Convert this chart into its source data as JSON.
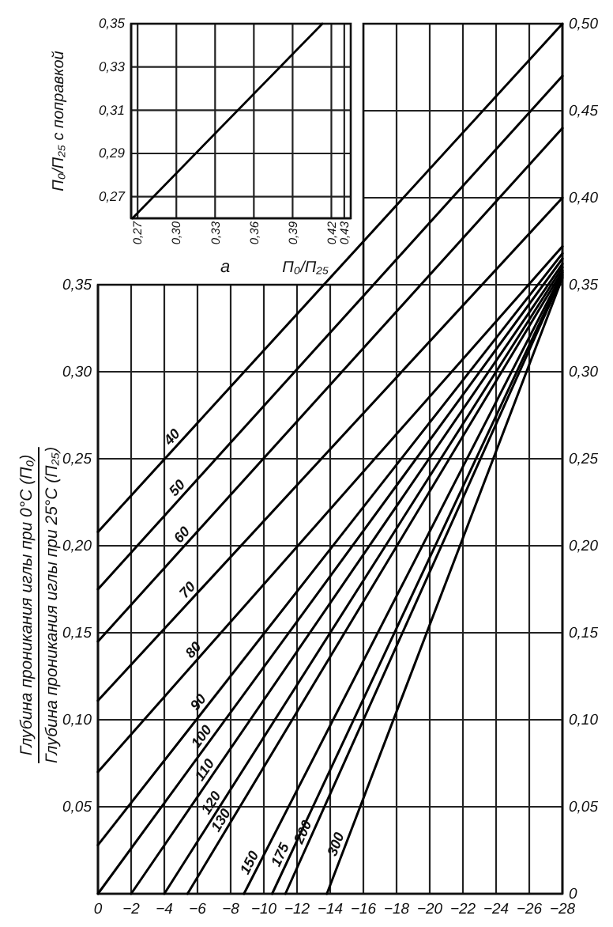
{
  "chart_data": [
    {
      "type": "line",
      "title": "a",
      "xlabel": "П₀/П₂₅",
      "ylabel": "П₀/П₂₅ с поправкой",
      "xlim": [
        0.265,
        0.435
      ],
      "ylim": [
        0.26,
        0.35
      ],
      "xticks": [
        {
          "value": 0.27,
          "label": "0,27"
        },
        {
          "value": 0.3,
          "label": "0,30"
        },
        {
          "value": 0.33,
          "label": "0,33"
        },
        {
          "value": 0.36,
          "label": "0,36"
        },
        {
          "value": 0.39,
          "label": "0,39"
        },
        {
          "value": 0.42,
          "label": "0,42"
        },
        {
          "value": 0.43,
          "label": "0,43"
        }
      ],
      "yticks": [
        {
          "value": 0.27,
          "label": "0,27"
        },
        {
          "value": 0.29,
          "label": "0,29"
        },
        {
          "value": 0.31,
          "label": "0,31"
        },
        {
          "value": 0.33,
          "label": "0,33"
        },
        {
          "value": 0.35,
          "label": "0,35"
        }
      ],
      "grid": true,
      "series": [
        {
          "color": "#000000",
          "x": [
            0.266,
            0.413
          ],
          "values": [
            0.26,
            0.35
          ]
        }
      ]
    },
    {
      "type": "line",
      "ylabel": "Глубина проникания иглы при 0°С (П₀)\nГлубина проникания иглы при 25°С (П₂₅)",
      "xlim": [
        0,
        -28
      ],
      "ylim": [
        0,
        0.5
      ],
      "y2lim": [
        0,
        0.5
      ],
      "xticks": [
        0,
        {
          "value": -2,
          "label": "−2"
        },
        {
          "value": -4,
          "label": "−4"
        },
        {
          "value": -6,
          "label": "−6"
        },
        {
          "value": -8,
          "label": "−8"
        },
        {
          "value": -10,
          "label": "−10"
        },
        {
          "value": -12,
          "label": "−12"
        },
        {
          "value": -14,
          "label": "−14"
        },
        {
          "value": -16,
          "label": "−16"
        },
        {
          "value": -18,
          "label": "−18"
        },
        {
          "value": -20,
          "label": "−20"
        },
        {
          "value": -22,
          "label": "−22"
        },
        {
          "value": -24,
          "label": "−24"
        },
        {
          "value": -26,
          "label": "−26"
        },
        {
          "value": -28,
          "label": "−28"
        }
      ],
      "yticks": [
        {
          "value": 0.05,
          "label": "0,05"
        },
        {
          "value": 0.1,
          "label": "0,10"
        },
        {
          "value": 0.15,
          "label": "0,15"
        },
        {
          "value": 0.2,
          "label": "0,20"
        },
        {
          "value": 0.25,
          "label": "0,25"
        },
        {
          "value": 0.3,
          "label": "0,30"
        },
        {
          "value": 0.35,
          "label": "0,35"
        }
      ],
      "y2ticks": [
        0,
        {
          "value": 0.05,
          "label": "0,05"
        },
        {
          "value": 0.1,
          "label": "0,10"
        },
        {
          "value": 0.15,
          "label": "0,15"
        },
        {
          "value": 0.2,
          "label": "0,20"
        },
        {
          "value": 0.25,
          "label": "0,25"
        },
        {
          "value": 0.3,
          "label": "0,30"
        },
        {
          "value": 0.35,
          "label": "0,35"
        },
        {
          "value": 0.4,
          "label": "0,40"
        },
        {
          "value": 0.45,
          "label": "0,45"
        },
        {
          "value": 0.5,
          "label": "0,50"
        }
      ],
      "grid": true,
      "series": [
        {
          "name": "40",
          "color": "#000000",
          "x": [
            0,
            -28
          ],
          "values": [
            0.208,
            0.5
          ]
        },
        {
          "name": "50",
          "color": "#000000",
          "x": [
            0,
            -28
          ],
          "values": [
            0.175,
            0.47
          ]
        },
        {
          "name": "60",
          "color": "#000000",
          "x": [
            0,
            -28
          ],
          "values": [
            0.145,
            0.44
          ]
        },
        {
          "name": "70",
          "color": "#000000",
          "x": [
            0,
            -28
          ],
          "values": [
            0.111,
            0.4
          ]
        },
        {
          "name": "80",
          "color": "#000000",
          "x": [
            0,
            -28
          ],
          "values": [
            0.07,
            0.372
          ]
        },
        {
          "name": "90",
          "color": "#000000",
          "x": [
            0,
            -28
          ],
          "values": [
            0.028,
            0.368
          ]
        },
        {
          "name": "100",
          "color": "#000000",
          "x": [
            0,
            -28
          ],
          "values": [
            0,
            0.365
          ]
        },
        {
          "name": "110",
          "color": "#000000",
          "x": [
            -2,
            -28
          ],
          "values": [
            0,
            0.362
          ]
        },
        {
          "name": "120",
          "color": "#000000",
          "x": [
            -4,
            -28
          ],
          "values": [
            0,
            0.36
          ]
        },
        {
          "name": "130",
          "color": "#000000",
          "x": [
            -5.4,
            -28
          ],
          "values": [
            0,
            0.358
          ]
        },
        {
          "name": "150",
          "color": "#000000",
          "x": [
            -8.8,
            -28
          ],
          "values": [
            0,
            0.357
          ]
        },
        {
          "name": "175",
          "color": "#000000",
          "x": [
            -10.5,
            -28
          ],
          "values": [
            0,
            0.356
          ]
        },
        {
          "name": "200",
          "color": "#000000",
          "x": [
            -11.3,
            -28
          ],
          "values": [
            0,
            0.355
          ]
        },
        {
          "name": "300",
          "color": "#000000",
          "x": [
            -13.8,
            -28
          ],
          "values": [
            0,
            0.354
          ]
        }
      ]
    }
  ]
}
